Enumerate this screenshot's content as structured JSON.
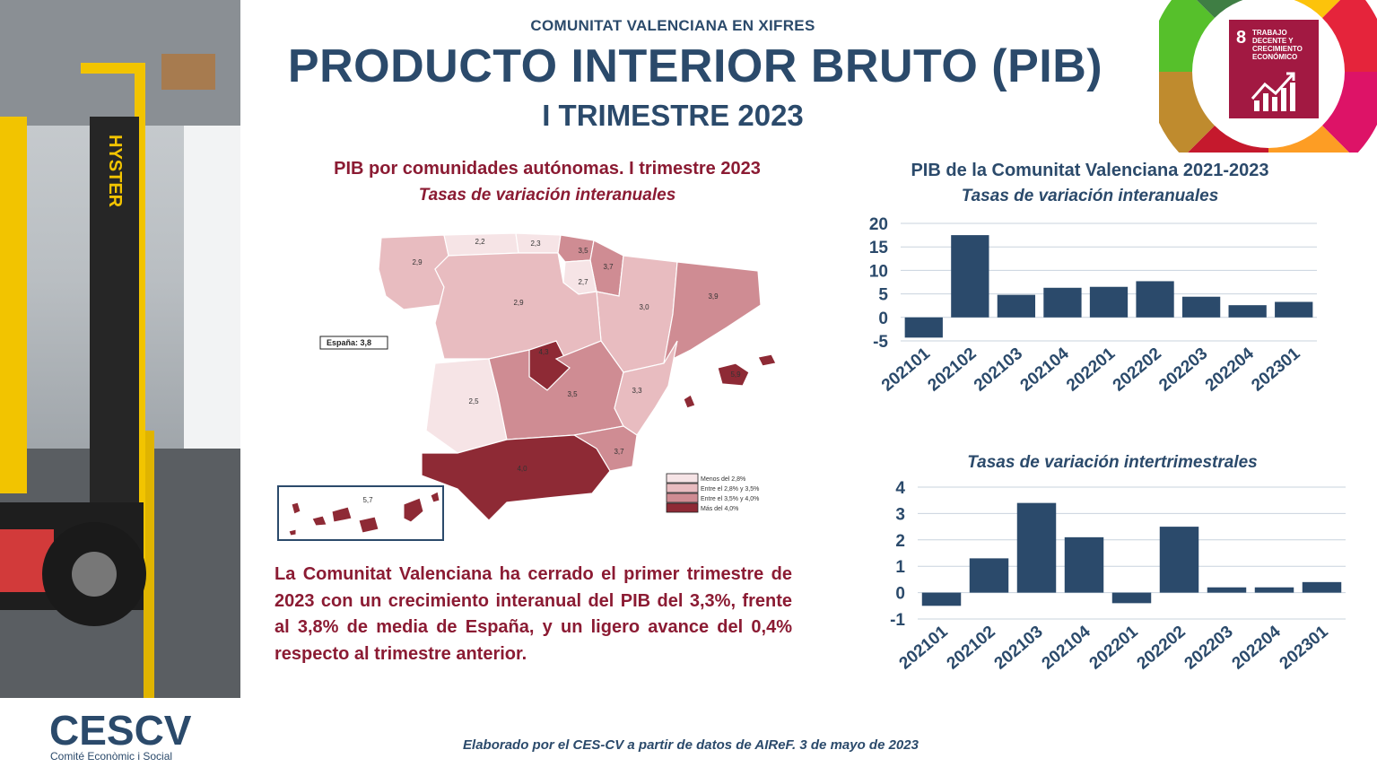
{
  "header": {
    "kicker": "COMUNITAT VALENCIANA EN XIFRES",
    "title": "PRODUCTO INTERIOR BRUTO (PIB)",
    "subtitle": "I TRIMESTRE 2023"
  },
  "sdg_badge": {
    "number": "8",
    "text": "TRABAJO DECENTE Y CRECIMIENTO ECONÓMICO",
    "color": "#a21942"
  },
  "photo": {
    "brand_text": "HYSTER"
  },
  "map": {
    "title": "PIB por comunidades autónomas. I trimestre 2023",
    "subtitle": "Tasas de variación interanuales",
    "spain_label": "España: 3,8",
    "regions": [
      {
        "id": "galicia",
        "value": "2,9",
        "bin": 2
      },
      {
        "id": "asturias",
        "value": "2,2",
        "bin": 1
      },
      {
        "id": "cantabria",
        "value": "2,3",
        "bin": 1
      },
      {
        "id": "pais-vasco",
        "value": "3,5",
        "bin": 3
      },
      {
        "id": "navarra",
        "value": "3,7",
        "bin": 3
      },
      {
        "id": "la-rioja",
        "value": "2,7",
        "bin": 1
      },
      {
        "id": "aragon",
        "value": "3,0",
        "bin": 2
      },
      {
        "id": "cataluna",
        "value": "3,9",
        "bin": 3
      },
      {
        "id": "castilla-leon",
        "value": "2,9",
        "bin": 2
      },
      {
        "id": "madrid",
        "value": "4,3",
        "bin": 4
      },
      {
        "id": "extremadura",
        "value": "2,5",
        "bin": 1
      },
      {
        "id": "castilla-la-mancha",
        "value": "3,5",
        "bin": 3
      },
      {
        "id": "comunitat-valenciana",
        "value": "3,3",
        "bin": 2
      },
      {
        "id": "murcia",
        "value": "3,7",
        "bin": 3
      },
      {
        "id": "andalucia",
        "value": "4,0",
        "bin": 4
      },
      {
        "id": "baleares",
        "value": "5,9",
        "bin": 4
      },
      {
        "id": "canarias",
        "value": "5,7",
        "bin": 4
      }
    ],
    "legend": [
      "Menos del 2,8%",
      "Entre el 2,8% y 3,5%",
      "Entre el 3,5% y 4,0%",
      "Más del 4,0%"
    ],
    "bin_colors": [
      "#f6e4e6",
      "#e8bcc0",
      "#cf8c93",
      "#8e2a35"
    ]
  },
  "paragraph": "La Comunitat Valenciana ha cerrado el primer trimestre de 2023 con un crecimiento interanual del PIB del 3,3%, frente al 3,8% de media de España, y un ligero avance del 0,4% respecto al trimestre anterior.",
  "charts": {
    "title": "PIB de la Comunitat Valenciana 2021-2023",
    "subtitle": "Tasas de variación interanuales",
    "subtitle2": "Tasas de variación intertrimestrales"
  },
  "chart_data": [
    {
      "type": "bar",
      "title": "PIB de la Comunitat Valenciana 2021-2023",
      "subtitle": "Tasas de variación interanuales",
      "categories": [
        "202101",
        "202102",
        "202103",
        "202104",
        "202201",
        "202202",
        "202203",
        "202204",
        "202301"
      ],
      "values": [
        -4.3,
        17.5,
        4.8,
        6.3,
        6.5,
        7.7,
        4.4,
        2.6,
        3.3
      ],
      "ylim": [
        -5,
        20
      ],
      "yticks": [
        -5,
        0,
        5,
        10,
        15,
        20
      ],
      "grid": true,
      "color": "#2b4a6b"
    },
    {
      "type": "bar",
      "title": "Tasas de variación intertrimestrales",
      "categories": [
        "202101",
        "202102",
        "202103",
        "202104",
        "202201",
        "202202",
        "202203",
        "202204",
        "202301"
      ],
      "values": [
        -0.5,
        1.3,
        3.4,
        2.1,
        -0.4,
        2.5,
        0.2,
        0.2,
        0.4
      ],
      "ylim": [
        -1,
        4
      ],
      "yticks": [
        -1,
        0,
        1,
        2,
        3,
        4
      ],
      "grid": true,
      "color": "#2b4a6b"
    }
  ],
  "logo": {
    "name": "CESCV",
    "tagline": "Comité Econòmic i Social"
  },
  "footer": "Elaborado por el CES-CV a partir de datos de AIReF. 3 de mayo de 2023"
}
